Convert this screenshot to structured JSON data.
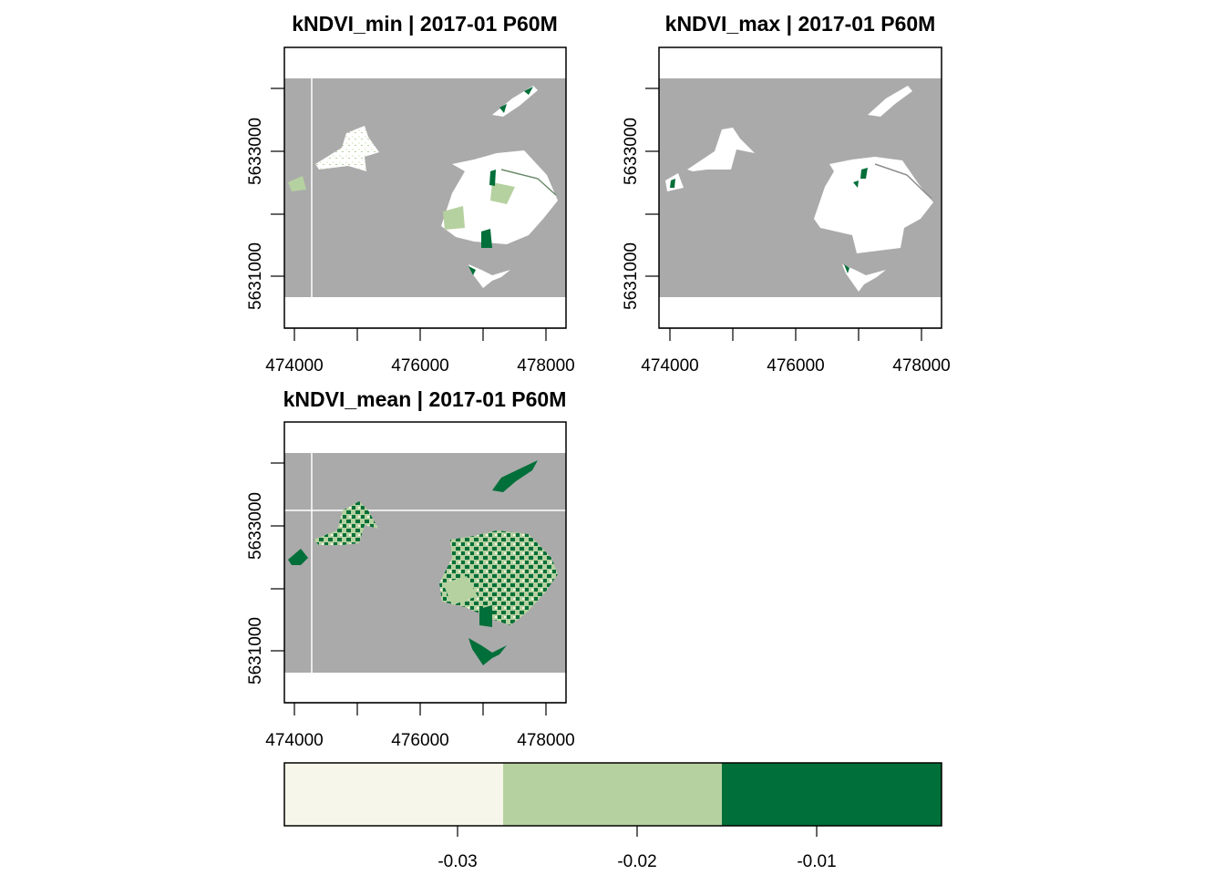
{
  "panels": [
    {
      "title": "kNDVI_min | 2017-01 P60M"
    },
    {
      "title": "kNDVI_max | 2017-01 P60M"
    },
    {
      "title": "kNDVI_mean | 2017-01 P60M"
    }
  ],
  "x_ticks": [
    "474000",
    "476000",
    "478000"
  ],
  "y_ticks": [
    "5631000",
    "5633000"
  ],
  "legend": {
    "tick_labels": [
      "-0.03",
      "-0.02",
      "-0.01"
    ],
    "classes": [
      {
        "color": "#f7f6ea"
      },
      {
        "color": "#b6d1a0"
      },
      {
        "color": "#006f39"
      }
    ]
  },
  "colors": {
    "raster_background": "#aaaaaa",
    "na_area": "#ffffff",
    "frame": "#000000"
  }
}
